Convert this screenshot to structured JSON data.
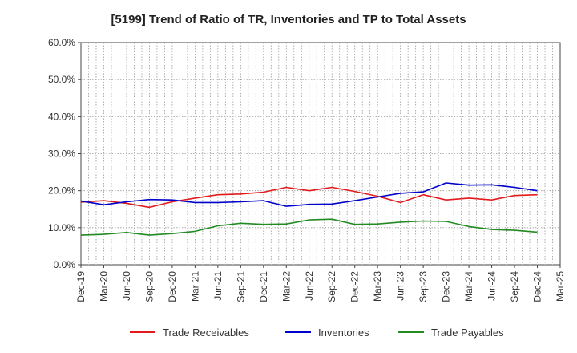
{
  "chart_data": {
    "type": "line",
    "title": "[5199]  Trend of Ratio of TR, Inventories and TP to Total Assets",
    "xlabel": "",
    "ylabel": "",
    "ylim": [
      0,
      60
    ],
    "yticks": [
      0,
      10,
      20,
      30,
      40,
      50,
      60
    ],
    "ytick_labels": [
      "0.0%",
      "10.0%",
      "20.0%",
      "30.0%",
      "40.0%",
      "50.0%",
      "60.0%"
    ],
    "grid": true,
    "legend_position": "bottom",
    "categories": [
      "Dec-19",
      "Mar-20",
      "Jun-20",
      "Sep-20",
      "Dec-20",
      "Mar-21",
      "Jun-21",
      "Sep-21",
      "Dec-21",
      "Mar-22",
      "Jun-22",
      "Sep-22",
      "Dec-22",
      "Mar-23",
      "Jun-23",
      "Sep-23",
      "Dec-23",
      "Mar-24",
      "Jun-24",
      "Sep-24",
      "Dec-24",
      "Mar-25"
    ],
    "series": [
      {
        "name": "Trade Receivables",
        "color": "#e31a1c",
        "values": [
          16.9,
          17.3,
          16.6,
          15.5,
          17.0,
          18.0,
          18.9,
          19.1,
          19.6,
          20.9,
          20.0,
          20.9,
          19.8,
          18.5,
          16.8,
          18.9,
          17.5,
          18.0,
          17.5,
          18.7,
          18.9,
          null
        ]
      },
      {
        "name": "Inventories",
        "color": "#0000cc",
        "values": [
          17.2,
          16.2,
          17.0,
          17.6,
          17.5,
          16.8,
          16.8,
          17.0,
          17.3,
          15.8,
          16.3,
          16.4,
          17.3,
          18.3,
          19.3,
          19.7,
          22.1,
          21.5,
          21.6,
          20.9,
          20.0,
          null
        ]
      },
      {
        "name": "Trade Payables",
        "color": "#228b22",
        "values": [
          8.0,
          8.2,
          8.7,
          8.0,
          8.4,
          9.0,
          10.5,
          11.2,
          10.9,
          11.0,
          12.1,
          12.3,
          10.9,
          11.0,
          11.5,
          11.8,
          11.7,
          10.3,
          9.5,
          9.3,
          8.8,
          null
        ]
      }
    ]
  }
}
